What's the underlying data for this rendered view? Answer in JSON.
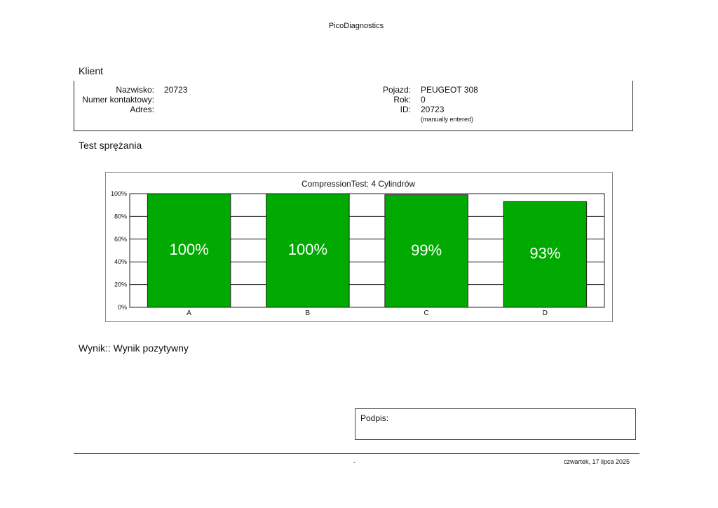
{
  "header": {
    "title": "PicoDiagnostics"
  },
  "client": {
    "section_title": "Klient",
    "name_label": "Nazwisko:",
    "name_value": "20723",
    "contact_label": "Numer kontaktowy:",
    "address_label": "Adres:",
    "vehicle_label": "Pojazd:",
    "vehicle_value": "PEUGEOT 308",
    "year_label": "Rok:",
    "year_value": "0",
    "id_label": "ID:",
    "id_value": "20723",
    "id_note": "(manually entered)"
  },
  "test": {
    "section_title": "Test sprężania"
  },
  "chart_data": {
    "type": "bar",
    "title": "CompressionTest: 4 Cylindrów",
    "categories": [
      "A",
      "B",
      "C",
      "D"
    ],
    "values": [
      100,
      100,
      99,
      93
    ],
    "data_labels": [
      "100%",
      "100%",
      "99%",
      "93%"
    ],
    "ylim": [
      0,
      100
    ],
    "yticks": [
      "0%",
      "20%",
      "40%",
      "60%",
      "80%",
      "100%"
    ],
    "xlabel": "",
    "ylabel": "",
    "grid": true,
    "bar_color": "#00aa00"
  },
  "result": {
    "text": "Wynik:: Wynik pozytywny"
  },
  "signature": {
    "label": "Podpis:"
  },
  "footer": {
    "dash": "-",
    "date": "czwartek, 17 lipca 2025"
  }
}
